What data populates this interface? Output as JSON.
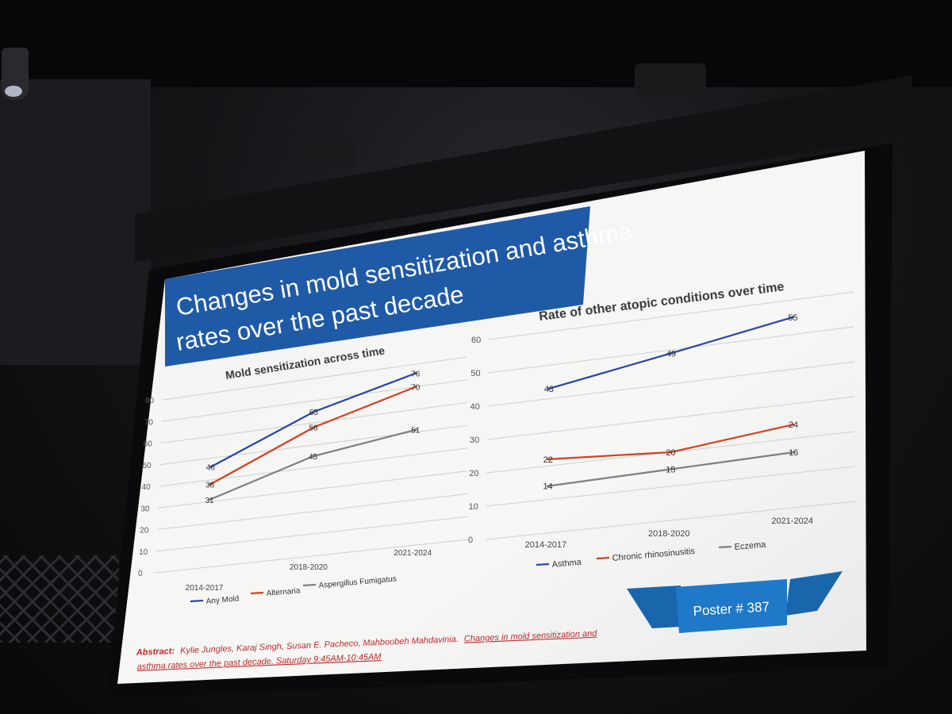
{
  "slide": {
    "title_line1": "Changes in mold sensitization and asthma",
    "title_line2": "rates over the past decade",
    "poster_label": "Poster # 387",
    "abstract_label": "Abstract:",
    "abstract_authors": "Kylie Jungles, Karaj Singh, Susan E. Pacheco, Mahboobeh Mahdavinia.",
    "abstract_title_part1": "Changes in mold sensitization and",
    "abstract_title_part2": "asthma rates over the past decade. Saturday 9:45AM-10:45AM"
  },
  "colors": {
    "title_band": "#1f5aa6",
    "poster_ribbon": "#1f78c8",
    "series_blue": "#2746a6",
    "series_red": "#d9401f",
    "series_gray": "#7f7f7f",
    "abstract_red": "#c0282a"
  },
  "chart_data": [
    {
      "type": "line",
      "title": "Mold sensitization across time",
      "categories": [
        "2014-2017",
        "2018-2020",
        "2021-2024"
      ],
      "ylim": [
        0,
        80
      ],
      "yticks": [
        "0",
        "10",
        "20",
        "30",
        "40",
        "50",
        "60",
        "70",
        "80"
      ],
      "grid": true,
      "legend": "bottom",
      "series": [
        {
          "name": "Any Mold",
          "values": [
            46,
            65,
            76
          ],
          "labels": [
            "46",
            "65",
            "76"
          ],
          "color": "#2746a6"
        },
        {
          "name": "Alternaria",
          "values": [
            38,
            58,
            70
          ],
          "labels": [
            "38",
            "58",
            "70"
          ],
          "color": "#d9401f"
        },
        {
          "name": "Aspergillus Fumigatus",
          "values": [
            31,
            45,
            51
          ],
          "labels": [
            "31",
            "45",
            "51"
          ],
          "color": "#7f7f7f"
        }
      ]
    },
    {
      "type": "line",
      "title": "Rate of other atopic conditions over time",
      "categories": [
        "2014-2017",
        "2018-2020",
        "2021-2024"
      ],
      "ylim": [
        0,
        60
      ],
      "yticks": [
        "0",
        "10",
        "20",
        "30",
        "40",
        "50",
        "60"
      ],
      "grid": true,
      "legend": "bottom",
      "series": [
        {
          "name": "Asthma",
          "values": [
            43,
            49,
            55
          ],
          "labels": [
            "43",
            "49",
            "55"
          ],
          "color": "#2746a6"
        },
        {
          "name": "Chronic rhinosinusitis",
          "values": [
            22,
            20,
            24
          ],
          "labels": [
            "22",
            "20",
            "24"
          ],
          "color": "#d9401f"
        },
        {
          "name": "Eczema",
          "values": [
            14,
            15,
            16
          ],
          "labels": [
            "14",
            "15",
            "16"
          ],
          "color": "#7f7f7f"
        }
      ]
    }
  ]
}
